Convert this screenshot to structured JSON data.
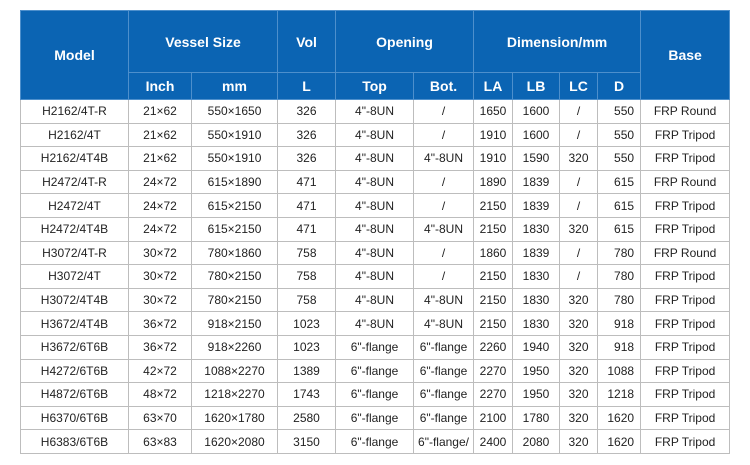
{
  "header": {
    "model": "Model",
    "vessel_size": "Vessel Size",
    "vol": "Vol",
    "opening": "Opening",
    "dimension": "Dimension/mm",
    "base": "Base",
    "inch": "Inch",
    "mm": "mm",
    "l": "L",
    "top": "Top",
    "bot": "Bot.",
    "la": "LA",
    "lb": "LB",
    "lc": "LC",
    "d": "D"
  },
  "colors": {
    "header_bg": "#0b64b3"
  },
  "rows": [
    [
      "H2162/4T-R",
      "21×62",
      "550×1650",
      "326",
      "4\"-8UN",
      "/",
      "1650",
      "1600",
      "/",
      "550",
      "FRP Round"
    ],
    [
      "H2162/4T",
      "21×62",
      "550×1910",
      "326",
      "4\"-8UN",
      "/",
      "1910",
      "1600",
      "/",
      "550",
      "FRP Tripod"
    ],
    [
      "H2162/4T4B",
      "21×62",
      "550×1910",
      "326",
      "4\"-8UN",
      "4\"-8UN",
      "1910",
      "1590",
      "320",
      "550",
      "FRP Tripod"
    ],
    [
      "H2472/4T-R",
      "24×72",
      "615×1890",
      "471",
      "4\"-8UN",
      "/",
      "1890",
      "1839",
      "/",
      "615",
      "FRP Round"
    ],
    [
      "H2472/4T",
      "24×72",
      "615×2150",
      "471",
      "4\"-8UN",
      "/",
      "2150",
      "1839",
      "/",
      "615",
      "FRP Tripod"
    ],
    [
      "H2472/4T4B",
      "24×72",
      "615×2150",
      "471",
      "4\"-8UN",
      "4\"-8UN",
      "2150",
      "1830",
      "320",
      "615",
      "FRP Tripod"
    ],
    [
      "H3072/4T-R",
      "30×72",
      "780×1860",
      "758",
      "4\"-8UN",
      "/",
      "1860",
      "1839",
      "/",
      "780",
      "FRP Round"
    ],
    [
      "H3072/4T",
      "30×72",
      "780×2150",
      "758",
      "4\"-8UN",
      "/",
      "2150",
      "1830",
      "/",
      "780",
      "FRP Tripod"
    ],
    [
      "H3072/4T4B",
      "30×72",
      "780×2150",
      "758",
      "4\"-8UN",
      "4\"-8UN",
      "2150",
      "1830",
      "320",
      "780",
      "FRP Tripod"
    ],
    [
      "H3672/4T4B",
      "36×72",
      "918×2150",
      "1023",
      "4\"-8UN",
      "4\"-8UN",
      "2150",
      "1830",
      "320",
      "918",
      "FRP Tripod"
    ],
    [
      "H3672/6T6B",
      "36×72",
      "918×2260",
      "1023",
      "6\"-flange",
      "6\"-flange",
      "2260",
      "1940",
      "320",
      "918",
      "FRP Tripod"
    ],
    [
      "H4272/6T6B",
      "42×72",
      "1088×2270",
      "1389",
      "6\"-flange",
      "6\"-flange",
      "2270",
      "1950",
      "320",
      "1088",
      "FRP Tripod"
    ],
    [
      "H4872/6T6B",
      "48×72",
      "1218×2270",
      "1743",
      "6\"-flange",
      "6\"-flange",
      "2270",
      "1950",
      "320",
      "1218",
      "FRP Tripod"
    ],
    [
      "H6370/6T6B",
      "63×70",
      "1620×1780",
      "2580",
      "6\"-flange",
      "6\"-flange",
      "2100",
      "1780",
      "320",
      "1620",
      "FRP Tripod"
    ],
    [
      "H6383/6T6B",
      "63×83",
      "1620×2080",
      "3150",
      "6\"-flange",
      "6\"-flange/",
      "2400",
      "2080",
      "320",
      "1620",
      "FRP Tripod"
    ]
  ]
}
